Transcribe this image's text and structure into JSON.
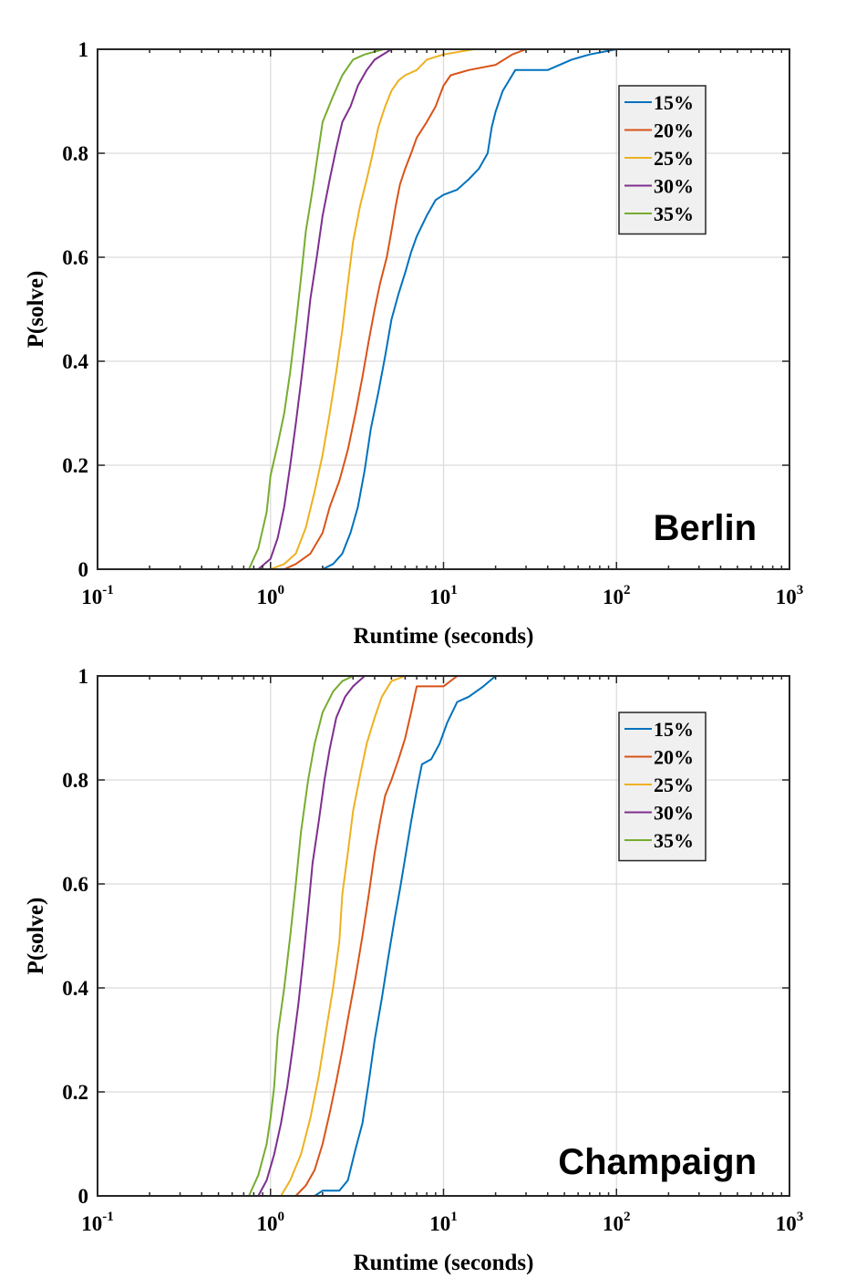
{
  "figure": {
    "panels": [
      {
        "annotation": "Berlin",
        "xlabel": "Runtime (seconds)",
        "ylabel": "P(solve)"
      },
      {
        "annotation": "Champaign",
        "xlabel": "Runtime (seconds)",
        "ylabel": "P(solve)"
      }
    ]
  },
  "chart_data": [
    {
      "type": "line",
      "title": "",
      "annotation": "Berlin",
      "xlabel": "Runtime (seconds)",
      "ylabel": "P(solve)",
      "xscale": "log",
      "xlim": [
        0.1,
        1000
      ],
      "ylim": [
        0,
        1
      ],
      "xticks": [
        0.1,
        1,
        10,
        100,
        1000
      ],
      "xtick_labels": [
        {
          "base": "10",
          "exp": "-1"
        },
        {
          "base": "10",
          "exp": "0"
        },
        {
          "base": "10",
          "exp": "1"
        },
        {
          "base": "10",
          "exp": "2"
        },
        {
          "base": "10",
          "exp": "3"
        }
      ],
      "yticks": [
        0,
        0.2,
        0.4,
        0.6,
        0.8,
        1
      ],
      "ytick_labels": [
        "0",
        "0.2",
        "0.4",
        "0.6",
        "0.8",
        "1"
      ],
      "grid": true,
      "legend_position": "top-right",
      "series": [
        {
          "name": "15%",
          "color": "#0072BD",
          "points": [
            [
              0.1,
              0
            ],
            [
              2.0,
              0
            ],
            [
              2.3,
              0.01
            ],
            [
              2.6,
              0.03
            ],
            [
              2.9,
              0.07
            ],
            [
              3.2,
              0.12
            ],
            [
              3.5,
              0.19
            ],
            [
              3.8,
              0.27
            ],
            [
              4.2,
              0.34
            ],
            [
              4.6,
              0.41
            ],
            [
              5.0,
              0.48
            ],
            [
              5.5,
              0.53
            ],
            [
              6.0,
              0.57
            ],
            [
              6.5,
              0.61
            ],
            [
              7.0,
              0.64
            ],
            [
              8.0,
              0.68
            ],
            [
              9.0,
              0.71
            ],
            [
              10.0,
              0.72
            ],
            [
              12.0,
              0.73
            ],
            [
              14.0,
              0.75
            ],
            [
              16.0,
              0.77
            ],
            [
              18.0,
              0.8
            ],
            [
              19.0,
              0.85
            ],
            [
              20.0,
              0.88
            ],
            [
              22.0,
              0.92
            ],
            [
              26.0,
              0.96
            ],
            [
              40.0,
              0.96
            ],
            [
              55.0,
              0.98
            ],
            [
              70.0,
              0.99
            ],
            [
              100.0,
              1
            ],
            [
              1000,
              1
            ]
          ]
        },
        {
          "name": "20%",
          "color": "#D95319",
          "points": [
            [
              0.1,
              0
            ],
            [
              1.2,
              0
            ],
            [
              1.4,
              0.01
            ],
            [
              1.7,
              0.03
            ],
            [
              2.0,
              0.07
            ],
            [
              2.2,
              0.12
            ],
            [
              2.5,
              0.17
            ],
            [
              2.8,
              0.23
            ],
            [
              3.1,
              0.3
            ],
            [
              3.4,
              0.37
            ],
            [
              3.7,
              0.44
            ],
            [
              4.0,
              0.5
            ],
            [
              4.3,
              0.55
            ],
            [
              4.7,
              0.6
            ],
            [
              5.0,
              0.65
            ],
            [
              5.3,
              0.7
            ],
            [
              5.6,
              0.74
            ],
            [
              6.0,
              0.77
            ],
            [
              6.5,
              0.8
            ],
            [
              7.0,
              0.83
            ],
            [
              8.0,
              0.86
            ],
            [
              9.0,
              0.89
            ],
            [
              10.0,
              0.93
            ],
            [
              11.0,
              0.95
            ],
            [
              14.0,
              0.96
            ],
            [
              20.0,
              0.97
            ],
            [
              25.0,
              0.99
            ],
            [
              30.0,
              1
            ],
            [
              1000,
              1
            ]
          ]
        },
        {
          "name": "25%",
          "color": "#EDB120",
          "points": [
            [
              0.1,
              0
            ],
            [
              1.0,
              0
            ],
            [
              1.2,
              0.01
            ],
            [
              1.4,
              0.03
            ],
            [
              1.6,
              0.08
            ],
            [
              1.8,
              0.15
            ],
            [
              2.0,
              0.22
            ],
            [
              2.2,
              0.3
            ],
            [
              2.4,
              0.38
            ],
            [
              2.6,
              0.46
            ],
            [
              2.8,
              0.55
            ],
            [
              3.0,
              0.63
            ],
            [
              3.3,
              0.7
            ],
            [
              3.6,
              0.75
            ],
            [
              3.9,
              0.8
            ],
            [
              4.2,
              0.85
            ],
            [
              4.6,
              0.89
            ],
            [
              5.0,
              0.92
            ],
            [
              5.5,
              0.94
            ],
            [
              6.0,
              0.95
            ],
            [
              7.0,
              0.96
            ],
            [
              8.0,
              0.98
            ],
            [
              10.0,
              0.99
            ],
            [
              15.0,
              1
            ],
            [
              1000,
              1
            ]
          ]
        },
        {
          "name": "30%",
          "color": "#7E2F8E",
          "points": [
            [
              0.1,
              0
            ],
            [
              0.85,
              0
            ],
            [
              1.0,
              0.02
            ],
            [
              1.1,
              0.06
            ],
            [
              1.2,
              0.12
            ],
            [
              1.3,
              0.2
            ],
            [
              1.4,
              0.28
            ],
            [
              1.5,
              0.36
            ],
            [
              1.6,
              0.44
            ],
            [
              1.7,
              0.52
            ],
            [
              1.85,
              0.6
            ],
            [
              2.0,
              0.68
            ],
            [
              2.2,
              0.75
            ],
            [
              2.4,
              0.81
            ],
            [
              2.6,
              0.86
            ],
            [
              2.9,
              0.89
            ],
            [
              3.2,
              0.93
            ],
            [
              3.6,
              0.96
            ],
            [
              4.0,
              0.98
            ],
            [
              5.0,
              1
            ],
            [
              1000,
              1
            ]
          ]
        },
        {
          "name": "35%",
          "color": "#77AC30",
          "points": [
            [
              0.1,
              0
            ],
            [
              0.75,
              0
            ],
            [
              0.85,
              0.04
            ],
            [
              0.95,
              0.11
            ],
            [
              1.0,
              0.18
            ],
            [
              1.1,
              0.24
            ],
            [
              1.2,
              0.3
            ],
            [
              1.3,
              0.38
            ],
            [
              1.4,
              0.47
            ],
            [
              1.5,
              0.56
            ],
            [
              1.6,
              0.65
            ],
            [
              1.75,
              0.73
            ],
            [
              1.9,
              0.81
            ],
            [
              2.0,
              0.86
            ],
            [
              2.3,
              0.91
            ],
            [
              2.6,
              0.95
            ],
            [
              3.0,
              0.98
            ],
            [
              3.5,
              0.99
            ],
            [
              4.5,
              1
            ],
            [
              1000,
              1
            ]
          ]
        }
      ]
    },
    {
      "type": "line",
      "title": "",
      "annotation": "Champaign",
      "xlabel": "Runtime (seconds)",
      "ylabel": "P(solve)",
      "xscale": "log",
      "xlim": [
        0.1,
        1000
      ],
      "ylim": [
        0,
        1
      ],
      "xticks": [
        0.1,
        1,
        10,
        100,
        1000
      ],
      "xtick_labels": [
        {
          "base": "10",
          "exp": "-1"
        },
        {
          "base": "10",
          "exp": "0"
        },
        {
          "base": "10",
          "exp": "1"
        },
        {
          "base": "10",
          "exp": "2"
        },
        {
          "base": "10",
          "exp": "3"
        }
      ],
      "yticks": [
        0,
        0.2,
        0.4,
        0.6,
        0.8,
        1
      ],
      "ytick_labels": [
        "0",
        "0.2",
        "0.4",
        "0.6",
        "0.8",
        "1"
      ],
      "grid": true,
      "legend_position": "top-right",
      "series": [
        {
          "name": "15%",
          "color": "#0072BD",
          "points": [
            [
              0.1,
              0
            ],
            [
              1.8,
              0
            ],
            [
              2.0,
              0.01
            ],
            [
              2.5,
              0.01
            ],
            [
              2.8,
              0.03
            ],
            [
              3.1,
              0.09
            ],
            [
              3.4,
              0.14
            ],
            [
              3.7,
              0.22
            ],
            [
              4.0,
              0.3
            ],
            [
              4.4,
              0.38
            ],
            [
              4.8,
              0.46
            ],
            [
              5.2,
              0.53
            ],
            [
              5.6,
              0.59
            ],
            [
              6.0,
              0.65
            ],
            [
              6.5,
              0.72
            ],
            [
              7.0,
              0.78
            ],
            [
              7.5,
              0.83
            ],
            [
              8.5,
              0.84
            ],
            [
              9.5,
              0.87
            ],
            [
              10.5,
              0.91
            ],
            [
              12.0,
              0.95
            ],
            [
              14.0,
              0.96
            ],
            [
              17.0,
              0.98
            ],
            [
              20.0,
              1
            ],
            [
              1000,
              1
            ]
          ]
        },
        {
          "name": "20%",
          "color": "#D95319",
          "points": [
            [
              0.1,
              0
            ],
            [
              1.4,
              0
            ],
            [
              1.6,
              0.02
            ],
            [
              1.8,
              0.05
            ],
            [
              2.0,
              0.1
            ],
            [
              2.2,
              0.16
            ],
            [
              2.4,
              0.22
            ],
            [
              2.6,
              0.28
            ],
            [
              2.8,
              0.34
            ],
            [
              3.1,
              0.42
            ],
            [
              3.4,
              0.5
            ],
            [
              3.7,
              0.58
            ],
            [
              4.0,
              0.66
            ],
            [
              4.3,
              0.72
            ],
            [
              4.6,
              0.77
            ],
            [
              5.0,
              0.8
            ],
            [
              5.5,
              0.84
            ],
            [
              6.0,
              0.88
            ],
            [
              6.5,
              0.93
            ],
            [
              7.0,
              0.98
            ],
            [
              10.0,
              0.98
            ],
            [
              12.0,
              1
            ],
            [
              1000,
              1
            ]
          ]
        },
        {
          "name": "25%",
          "color": "#EDB120",
          "points": [
            [
              0.1,
              0
            ],
            [
              1.15,
              0
            ],
            [
              1.3,
              0.03
            ],
            [
              1.5,
              0.08
            ],
            [
              1.7,
              0.15
            ],
            [
              1.9,
              0.23
            ],
            [
              2.1,
              0.32
            ],
            [
              2.3,
              0.4
            ],
            [
              2.5,
              0.49
            ],
            [
              2.6,
              0.58
            ],
            [
              2.8,
              0.66
            ],
            [
              3.0,
              0.74
            ],
            [
              3.3,
              0.81
            ],
            [
              3.6,
              0.87
            ],
            [
              4.0,
              0.92
            ],
            [
              4.4,
              0.96
            ],
            [
              5.0,
              0.99
            ],
            [
              6.0,
              1
            ],
            [
              1000,
              1
            ]
          ]
        },
        {
          "name": "30%",
          "color": "#7E2F8E",
          "points": [
            [
              0.1,
              0
            ],
            [
              0.85,
              0
            ],
            [
              0.95,
              0.03
            ],
            [
              1.05,
              0.08
            ],
            [
              1.15,
              0.14
            ],
            [
              1.25,
              0.21
            ],
            [
              1.35,
              0.29
            ],
            [
              1.45,
              0.37
            ],
            [
              1.55,
              0.46
            ],
            [
              1.65,
              0.55
            ],
            [
              1.75,
              0.64
            ],
            [
              1.9,
              0.72
            ],
            [
              2.05,
              0.8
            ],
            [
              2.2,
              0.86
            ],
            [
              2.4,
              0.92
            ],
            [
              2.7,
              0.96
            ],
            [
              3.0,
              0.98
            ],
            [
              3.5,
              1
            ],
            [
              1000,
              1
            ]
          ]
        },
        {
          "name": "35%",
          "color": "#77AC30",
          "points": [
            [
              0.1,
              0
            ],
            [
              0.75,
              0
            ],
            [
              0.85,
              0.04
            ],
            [
              0.95,
              0.1
            ],
            [
              1.0,
              0.15
            ],
            [
              1.05,
              0.21
            ],
            [
              1.1,
              0.31
            ],
            [
              1.2,
              0.4
            ],
            [
              1.3,
              0.5
            ],
            [
              1.4,
              0.6
            ],
            [
              1.5,
              0.7
            ],
            [
              1.65,
              0.8
            ],
            [
              1.8,
              0.87
            ],
            [
              2.0,
              0.93
            ],
            [
              2.3,
              0.97
            ],
            [
              2.6,
              0.99
            ],
            [
              3.0,
              1
            ],
            [
              1000,
              1
            ]
          ]
        }
      ]
    }
  ]
}
